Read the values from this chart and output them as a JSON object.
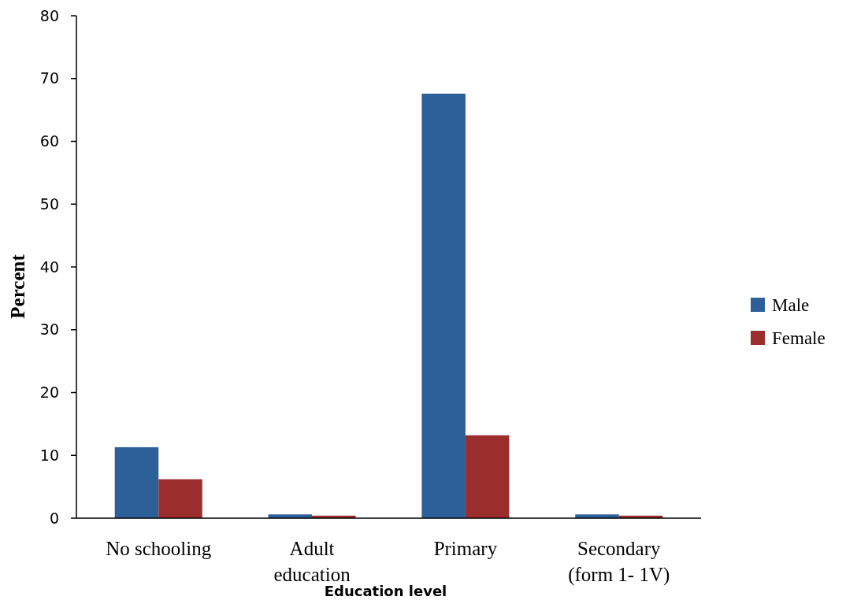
{
  "chart_data": {
    "type": "bar",
    "xlabel": "Education level",
    "ylabel": "Percent",
    "categories": [
      "No schooling",
      "Adult\neducation",
      "Primary",
      "Secondary\n(form 1- 1V)"
    ],
    "series": [
      {
        "name": "Male",
        "color": "#2d5f99",
        "values": [
          11.3,
          0.6,
          67.6,
          0.6
        ]
      },
      {
        "name": "Female",
        "color": "#9b2d2d",
        "values": [
          6.2,
          0.4,
          13.2,
          0.4
        ]
      }
    ],
    "ylim": [
      0,
      80
    ],
    "yticks": [
      0,
      10,
      20,
      30,
      40,
      50,
      60,
      70,
      80
    ],
    "grid": false,
    "legend": "right"
  }
}
